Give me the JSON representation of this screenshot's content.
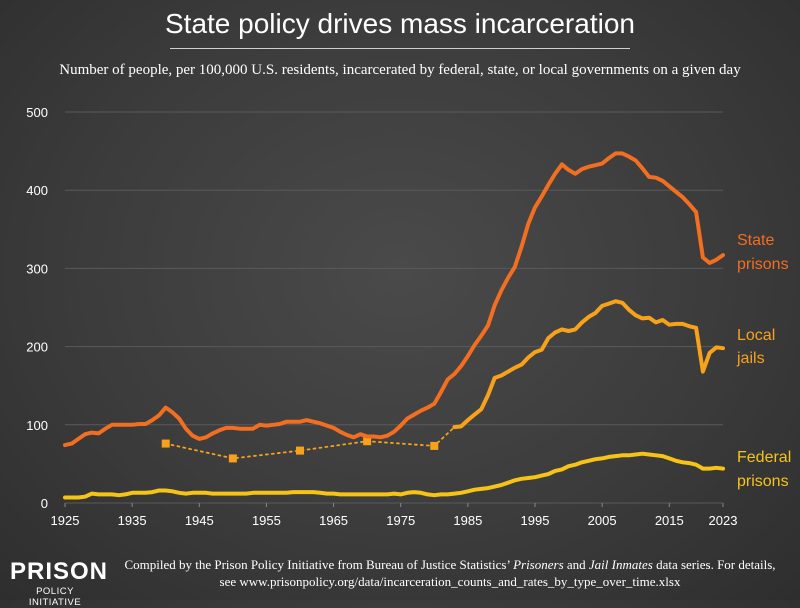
{
  "title": "State policy drives mass incarceration",
  "subtitle": "Number of people, per 100,000 U.S. residents, incarcerated by federal, state, or local governments on a given day",
  "source": {
    "prefix": "Compiled by the Prison Policy Initiative from Bureau of Justice Statistics’ ",
    "italic1": "Prisoners",
    "and": " and ",
    "italic2": "Jail Inmates",
    "suffix": " data series. For details, see www.prisonpolicy.org/data/incarceration_counts_and_rates_by_type_over_time.xlsx"
  },
  "logo": {
    "main": "PRISON",
    "sub": "POLICY INITIATIVE"
  },
  "colors": {
    "state": "#f26e21",
    "local": "#f8a21c",
    "federal": "#f6c416",
    "grid": "#5a5a5a",
    "text": "#ffffff"
  },
  "chart_data": {
    "type": "line",
    "xlim": [
      1925,
      2023
    ],
    "ylim": [
      0,
      500
    ],
    "xticks": [
      "1925",
      "1935",
      "1945",
      "1955",
      "1965",
      "1975",
      "1985",
      "1995",
      "2005",
      "2015",
      "2023"
    ],
    "yticks": [
      "0",
      "100",
      "200",
      "300",
      "400",
      "500"
    ],
    "grid": "horizontal",
    "series": [
      {
        "name": "State prisons",
        "label_lines": [
          "State",
          "prisons"
        ],
        "color": "#f26e21",
        "style": "solid",
        "points": [
          [
            1925,
            74
          ],
          [
            1926,
            76
          ],
          [
            1927,
            82
          ],
          [
            1928,
            88
          ],
          [
            1929,
            90
          ],
          [
            1930,
            89
          ],
          [
            1931,
            95
          ],
          [
            1932,
            100
          ],
          [
            1933,
            100
          ],
          [
            1934,
            100
          ],
          [
            1935,
            100
          ],
          [
            1936,
            101
          ],
          [
            1937,
            101
          ],
          [
            1938,
            106
          ],
          [
            1939,
            112
          ],
          [
            1940,
            122
          ],
          [
            1941,
            116
          ],
          [
            1942,
            108
          ],
          [
            1943,
            95
          ],
          [
            1944,
            86
          ],
          [
            1945,
            82
          ],
          [
            1946,
            84
          ],
          [
            1947,
            89
          ],
          [
            1948,
            93
          ],
          [
            1949,
            96
          ],
          [
            1950,
            96
          ],
          [
            1951,
            95
          ],
          [
            1952,
            95
          ],
          [
            1953,
            95
          ],
          [
            1954,
            100
          ],
          [
            1955,
            99
          ],
          [
            1956,
            100
          ],
          [
            1957,
            101
          ],
          [
            1958,
            104
          ],
          [
            1959,
            104
          ],
          [
            1960,
            104
          ],
          [
            1961,
            106
          ],
          [
            1962,
            104
          ],
          [
            1963,
            102
          ],
          [
            1964,
            99
          ],
          [
            1965,
            96
          ],
          [
            1966,
            91
          ],
          [
            1967,
            87
          ],
          [
            1968,
            84
          ],
          [
            1969,
            88
          ],
          [
            1970,
            85
          ],
          [
            1971,
            85
          ],
          [
            1972,
            84
          ],
          [
            1973,
            86
          ],
          [
            1974,
            91
          ],
          [
            1975,
            99
          ],
          [
            1976,
            108
          ],
          [
            1977,
            113
          ],
          [
            1978,
            118
          ],
          [
            1979,
            122
          ],
          [
            1980,
            127
          ],
          [
            1981,
            142
          ],
          [
            1982,
            158
          ],
          [
            1983,
            165
          ],
          [
            1984,
            175
          ],
          [
            1985,
            188
          ],
          [
            1986,
            202
          ],
          [
            1987,
            214
          ],
          [
            1988,
            227
          ],
          [
            1989,
            253
          ],
          [
            1990,
            272
          ],
          [
            1991,
            288
          ],
          [
            1992,
            302
          ],
          [
            1993,
            328
          ],
          [
            1994,
            357
          ],
          [
            1995,
            378
          ],
          [
            1996,
            392
          ],
          [
            1997,
            407
          ],
          [
            1998,
            421
          ],
          [
            1999,
            433
          ],
          [
            2000,
            426
          ],
          [
            2001,
            421
          ],
          [
            2002,
            427
          ],
          [
            2003,
            430
          ],
          [
            2004,
            432
          ],
          [
            2005,
            434
          ],
          [
            2006,
            441
          ],
          [
            2007,
            447
          ],
          [
            2008,
            447
          ],
          [
            2009,
            443
          ],
          [
            2010,
            438
          ],
          [
            2011,
            428
          ],
          [
            2012,
            417
          ],
          [
            2013,
            416
          ],
          [
            2014,
            412
          ],
          [
            2015,
            405
          ],
          [
            2016,
            398
          ],
          [
            2017,
            391
          ],
          [
            2018,
            382
          ],
          [
            2019,
            372
          ],
          [
            2020,
            314
          ],
          [
            2021,
            307
          ],
          [
            2022,
            311
          ],
          [
            2023,
            317
          ]
        ]
      },
      {
        "name": "Local jails",
        "label_lines": [
          "Local",
          "jails"
        ],
        "color": "#f8a21c",
        "style": "solid",
        "points": [
          [
            1983,
            97
          ],
          [
            1984,
            98
          ],
          [
            1985,
            106
          ],
          [
            1986,
            113
          ],
          [
            1987,
            120
          ],
          [
            1988,
            138
          ],
          [
            1989,
            160
          ],
          [
            1990,
            163
          ],
          [
            1991,
            168
          ],
          [
            1992,
            173
          ],
          [
            1993,
            177
          ],
          [
            1994,
            186
          ],
          [
            1995,
            193
          ],
          [
            1996,
            196
          ],
          [
            1997,
            211
          ],
          [
            1998,
            218
          ],
          [
            1999,
            222
          ],
          [
            2000,
            220
          ],
          [
            2001,
            222
          ],
          [
            2002,
            231
          ],
          [
            2003,
            238
          ],
          [
            2004,
            243
          ],
          [
            2005,
            252
          ],
          [
            2006,
            255
          ],
          [
            2007,
            258
          ],
          [
            2008,
            256
          ],
          [
            2009,
            247
          ],
          [
            2010,
            240
          ],
          [
            2011,
            236
          ],
          [
            2012,
            237
          ],
          [
            2013,
            231
          ],
          [
            2014,
            234
          ],
          [
            2015,
            228
          ],
          [
            2016,
            229
          ],
          [
            2017,
            229
          ],
          [
            2018,
            226
          ],
          [
            2019,
            224
          ],
          [
            2020,
            168
          ],
          [
            2021,
            192
          ],
          [
            2022,
            199
          ],
          [
            2023,
            198
          ]
        ]
      },
      {
        "name": "Local jails (early estimates)",
        "color": "#f8a21c",
        "style": "dotted",
        "points": [
          [
            1940,
            76
          ],
          [
            1950,
            57
          ],
          [
            1960,
            67
          ],
          [
            1970,
            79
          ],
          [
            1980,
            73
          ],
          [
            1983,
            97
          ]
        ],
        "markers": [
          [
            1940,
            76
          ],
          [
            1950,
            57
          ],
          [
            1960,
            67
          ],
          [
            1970,
            79
          ],
          [
            1980,
            73
          ]
        ]
      },
      {
        "name": "Federal prisons",
        "label_lines": [
          "Federal",
          "prisons"
        ],
        "color": "#f6c416",
        "style": "solid",
        "points": [
          [
            1925,
            7
          ],
          [
            1926,
            7
          ],
          [
            1927,
            7
          ],
          [
            1928,
            8
          ],
          [
            1929,
            12
          ],
          [
            1930,
            11
          ],
          [
            1931,
            11
          ],
          [
            1932,
            11
          ],
          [
            1933,
            10
          ],
          [
            1934,
            11
          ],
          [
            1935,
            13
          ],
          [
            1936,
            13
          ],
          [
            1937,
            13
          ],
          [
            1938,
            14
          ],
          [
            1939,
            16
          ],
          [
            1940,
            16
          ],
          [
            1941,
            15
          ],
          [
            1942,
            13
          ],
          [
            1943,
            12
          ],
          [
            1944,
            13
          ],
          [
            1945,
            13
          ],
          [
            1946,
            13
          ],
          [
            1947,
            12
          ],
          [
            1948,
            12
          ],
          [
            1949,
            12
          ],
          [
            1950,
            12
          ],
          [
            1951,
            12
          ],
          [
            1952,
            12
          ],
          [
            1953,
            13
          ],
          [
            1954,
            13
          ],
          [
            1955,
            13
          ],
          [
            1956,
            13
          ],
          [
            1957,
            13
          ],
          [
            1958,
            13
          ],
          [
            1959,
            14
          ],
          [
            1960,
            14
          ],
          [
            1961,
            14
          ],
          [
            1962,
            14
          ],
          [
            1963,
            13
          ],
          [
            1964,
            12
          ],
          [
            1965,
            12
          ],
          [
            1966,
            11
          ],
          [
            1967,
            11
          ],
          [
            1968,
            11
          ],
          [
            1969,
            11
          ],
          [
            1970,
            11
          ],
          [
            1971,
            11
          ],
          [
            1972,
            11
          ],
          [
            1973,
            11
          ],
          [
            1974,
            12
          ],
          [
            1975,
            11
          ],
          [
            1976,
            13
          ],
          [
            1977,
            14
          ],
          [
            1978,
            13
          ],
          [
            1979,
            11
          ],
          [
            1980,
            10
          ],
          [
            1981,
            11
          ],
          [
            1982,
            11
          ],
          [
            1983,
            12
          ],
          [
            1984,
            13
          ],
          [
            1985,
            15
          ],
          [
            1986,
            17
          ],
          [
            1987,
            18
          ],
          [
            1988,
            19
          ],
          [
            1989,
            21
          ],
          [
            1990,
            23
          ],
          [
            1991,
            26
          ],
          [
            1992,
            29
          ],
          [
            1993,
            31
          ],
          [
            1994,
            32
          ],
          [
            1995,
            33
          ],
          [
            1996,
            35
          ],
          [
            1997,
            37
          ],
          [
            1998,
            41
          ],
          [
            1999,
            43
          ],
          [
            2000,
            47
          ],
          [
            2001,
            49
          ],
          [
            2002,
            52
          ],
          [
            2003,
            54
          ],
          [
            2004,
            56
          ],
          [
            2005,
            57
          ],
          [
            2006,
            59
          ],
          [
            2007,
            60
          ],
          [
            2008,
            61
          ],
          [
            2009,
            61
          ],
          [
            2010,
            62
          ],
          [
            2011,
            63
          ],
          [
            2012,
            62
          ],
          [
            2013,
            61
          ],
          [
            2014,
            60
          ],
          [
            2015,
            57
          ],
          [
            2016,
            54
          ],
          [
            2017,
            52
          ],
          [
            2018,
            51
          ],
          [
            2019,
            49
          ],
          [
            2020,
            44
          ],
          [
            2021,
            44
          ],
          [
            2022,
            45
          ],
          [
            2023,
            44
          ]
        ]
      }
    ]
  }
}
